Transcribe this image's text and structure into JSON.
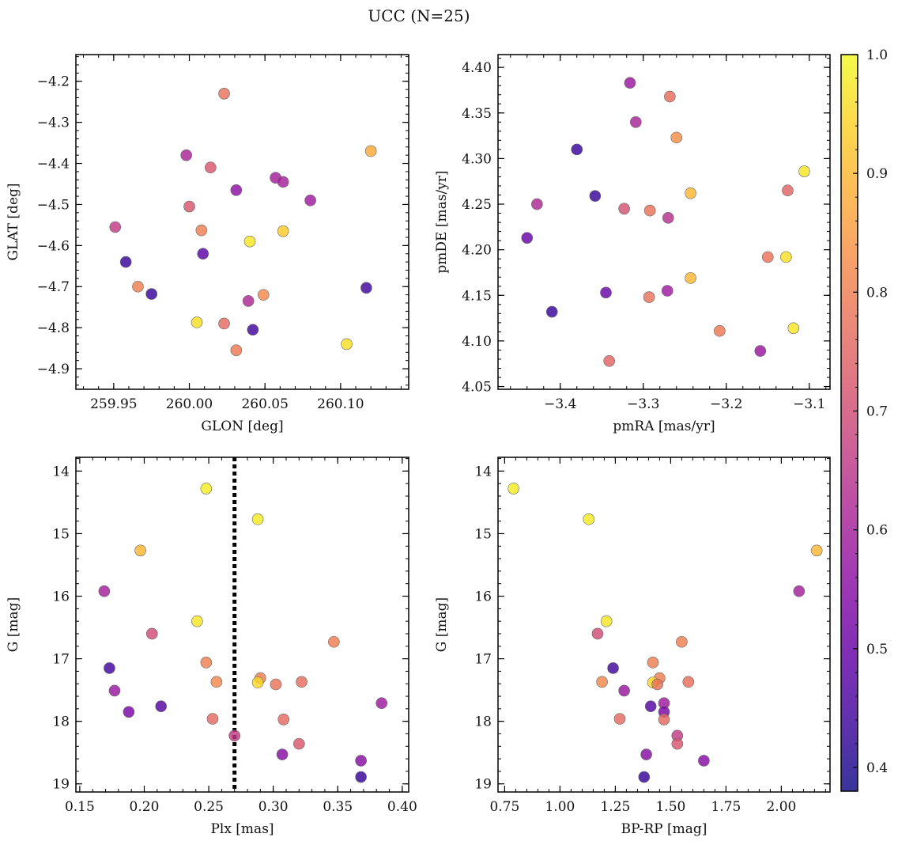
{
  "figure": {
    "title": "UCC (N=25)"
  },
  "chart_data": [
    {
      "type": "scatter",
      "id": "glon-glat",
      "xlabel": "GLON [deg]",
      "ylabel": "GLAT [deg]",
      "xlim": [
        259.925,
        260.145
      ],
      "ylim": [
        -4.95,
        -4.135
      ],
      "y_inverted": false,
      "xticks": [
        259.95,
        260.0,
        260.05,
        260.1
      ],
      "xticklabels": [
        "259.95",
        "260.00",
        "260.05",
        "260.10"
      ],
      "yticks": [
        -4.2,
        -4.3,
        -4.4,
        -4.5,
        -4.6,
        -4.7,
        -4.8,
        -4.9
      ],
      "yticklabels": [
        "−4.2",
        "−4.3",
        "−4.4",
        "−4.5",
        "−4.6",
        "−4.7",
        "−4.8",
        "−4.9"
      ],
      "points": [
        {
          "x": 260.023,
          "y": -4.23,
          "c": 0.78
        },
        {
          "x": 260.12,
          "y": -4.37,
          "c": 0.88
        },
        {
          "x": 259.998,
          "y": -4.38,
          "c": 0.61
        },
        {
          "x": 260.014,
          "y": -4.41,
          "c": 0.72
        },
        {
          "x": 260.057,
          "y": -4.435,
          "c": 0.6
        },
        {
          "x": 260.062,
          "y": -4.445,
          "c": 0.6
        },
        {
          "x": 260.031,
          "y": -4.465,
          "c": 0.56
        },
        {
          "x": 260.08,
          "y": -4.49,
          "c": 0.59
        },
        {
          "x": 260.0,
          "y": -4.505,
          "c": 0.72
        },
        {
          "x": 259.951,
          "y": -4.555,
          "c": 0.66
        },
        {
          "x": 260.008,
          "y": -4.563,
          "c": 0.8
        },
        {
          "x": 260.062,
          "y": -4.565,
          "c": 0.93
        },
        {
          "x": 260.04,
          "y": -4.59,
          "c": 0.97
        },
        {
          "x": 260.009,
          "y": -4.62,
          "c": 0.48
        },
        {
          "x": 259.958,
          "y": -4.64,
          "c": 0.43
        },
        {
          "x": 259.966,
          "y": -4.7,
          "c": 0.8
        },
        {
          "x": 260.117,
          "y": -4.703,
          "c": 0.44
        },
        {
          "x": 259.975,
          "y": -4.718,
          "c": 0.43
        },
        {
          "x": 260.049,
          "y": -4.72,
          "c": 0.82
        },
        {
          "x": 260.039,
          "y": -4.735,
          "c": 0.62
        },
        {
          "x": 260.005,
          "y": -4.787,
          "c": 0.96
        },
        {
          "x": 260.023,
          "y": -4.79,
          "c": 0.76
        },
        {
          "x": 260.042,
          "y": -4.805,
          "c": 0.44
        },
        {
          "x": 260.104,
          "y": -4.84,
          "c": 0.96
        },
        {
          "x": 260.031,
          "y": -4.855,
          "c": 0.79
        }
      ]
    },
    {
      "type": "scatter",
      "id": "pmra-pmde",
      "xlabel": "pmRA [mas/yr]",
      "ylabel": "pmDE [mas/yr]",
      "xlim": [
        -3.475,
        -3.075
      ],
      "ylim": [
        4.047,
        4.414
      ],
      "y_inverted": false,
      "xticks": [
        -3.4,
        -3.3,
        -3.2,
        -3.1
      ],
      "xticklabels": [
        "−3.4",
        "−3.3",
        "−3.2",
        "−3.1"
      ],
      "yticks": [
        4.05,
        4.1,
        4.15,
        4.2,
        4.25,
        4.3,
        4.35,
        4.4
      ],
      "yticklabels": [
        "4.05",
        "4.10",
        "4.15",
        "4.20",
        "4.25",
        "4.30",
        "4.35",
        "4.40"
      ],
      "points": [
        {
          "x": -3.316,
          "y": 4.383,
          "c": 0.58
        },
        {
          "x": -3.268,
          "y": 4.368,
          "c": 0.77
        },
        {
          "x": -3.309,
          "y": 4.34,
          "c": 0.61
        },
        {
          "x": -3.26,
          "y": 4.323,
          "c": 0.83
        },
        {
          "x": -3.38,
          "y": 4.31,
          "c": 0.43
        },
        {
          "x": -3.106,
          "y": 4.286,
          "c": 0.97
        },
        {
          "x": -3.126,
          "y": 4.265,
          "c": 0.75
        },
        {
          "x": -3.243,
          "y": 4.262,
          "c": 0.9
        },
        {
          "x": -3.358,
          "y": 4.259,
          "c": 0.43
        },
        {
          "x": -3.428,
          "y": 4.25,
          "c": 0.62
        },
        {
          "x": -3.323,
          "y": 4.245,
          "c": 0.71
        },
        {
          "x": -3.292,
          "y": 4.243,
          "c": 0.78
        },
        {
          "x": -3.27,
          "y": 4.235,
          "c": 0.64
        },
        {
          "x": -3.44,
          "y": 4.213,
          "c": 0.5
        },
        {
          "x": -3.15,
          "y": 4.192,
          "c": 0.78
        },
        {
          "x": -3.128,
          "y": 4.192,
          "c": 0.96
        },
        {
          "x": -3.243,
          "y": 4.169,
          "c": 0.9
        },
        {
          "x": -3.271,
          "y": 4.155,
          "c": 0.59
        },
        {
          "x": -3.345,
          "y": 4.153,
          "c": 0.5
        },
        {
          "x": -3.293,
          "y": 4.148,
          "c": 0.78
        },
        {
          "x": -3.41,
          "y": 4.132,
          "c": 0.43
        },
        {
          "x": -3.119,
          "y": 4.114,
          "c": 0.97
        },
        {
          "x": -3.208,
          "y": 4.111,
          "c": 0.79
        },
        {
          "x": -3.159,
          "y": 4.089,
          "c": 0.58
        },
        {
          "x": -3.341,
          "y": 4.078,
          "c": 0.75
        }
      ]
    },
    {
      "type": "scatter",
      "id": "plx-g",
      "xlabel": "Plx [mas]",
      "ylabel": "G [mag]",
      "xlim": [
        0.147,
        0.405
      ],
      "ylim": [
        19.13,
        13.78
      ],
      "y_inverted": true,
      "vline": {
        "x": 0.27,
        "style": "dotted"
      },
      "xticks": [
        0.15,
        0.2,
        0.25,
        0.3,
        0.35,
        0.4
      ],
      "xticklabels": [
        "0.15",
        "0.20",
        "0.25",
        "0.30",
        "0.35",
        "0.40"
      ],
      "yticks": [
        14,
        15,
        16,
        17,
        18,
        19
      ],
      "yticklabels": [
        "14",
        "15",
        "16",
        "17",
        "18",
        "19"
      ],
      "points": [
        {
          "x": 0.248,
          "y": 14.28,
          "c": 0.98
        },
        {
          "x": 0.288,
          "y": 14.77,
          "c": 0.98
        },
        {
          "x": 0.197,
          "y": 15.27,
          "c": 0.9
        },
        {
          "x": 0.169,
          "y": 15.92,
          "c": 0.6
        },
        {
          "x": 0.241,
          "y": 16.4,
          "c": 0.97
        },
        {
          "x": 0.206,
          "y": 16.6,
          "c": 0.7
        },
        {
          "x": 0.347,
          "y": 16.73,
          "c": 0.8
        },
        {
          "x": 0.248,
          "y": 17.06,
          "c": 0.8
        },
        {
          "x": 0.173,
          "y": 17.15,
          "c": 0.44
        },
        {
          "x": 0.29,
          "y": 17.31,
          "c": 0.8
        },
        {
          "x": 0.256,
          "y": 17.37,
          "c": 0.82
        },
        {
          "x": 0.288,
          "y": 17.38,
          "c": 0.95
        },
        {
          "x": 0.322,
          "y": 17.37,
          "c": 0.77
        },
        {
          "x": 0.302,
          "y": 17.41,
          "c": 0.78
        },
        {
          "x": 0.177,
          "y": 17.51,
          "c": 0.58
        },
        {
          "x": 0.384,
          "y": 17.71,
          "c": 0.59
        },
        {
          "x": 0.213,
          "y": 17.76,
          "c": 0.47
        },
        {
          "x": 0.188,
          "y": 17.85,
          "c": 0.53
        },
        {
          "x": 0.253,
          "y": 17.96,
          "c": 0.76
        },
        {
          "x": 0.308,
          "y": 17.97,
          "c": 0.76
        },
        {
          "x": 0.27,
          "y": 18.23,
          "c": 0.66
        },
        {
          "x": 0.32,
          "y": 18.36,
          "c": 0.72
        },
        {
          "x": 0.307,
          "y": 18.53,
          "c": 0.55
        },
        {
          "x": 0.368,
          "y": 18.63,
          "c": 0.55
        },
        {
          "x": 0.368,
          "y": 18.89,
          "c": 0.43
        }
      ]
    },
    {
      "type": "scatter",
      "id": "bprp-g",
      "xlabel": "BP-RP [mag]",
      "ylabel": "G [mag]",
      "xlim": [
        0.72,
        2.22
      ],
      "ylim": [
        19.13,
        13.78
      ],
      "y_inverted": true,
      "xticks": [
        0.75,
        1.0,
        1.25,
        1.5,
        1.75,
        2.0
      ],
      "xticklabels": [
        "0.75",
        "1.00",
        "1.25",
        "1.50",
        "1.75",
        "2.00"
      ],
      "yticks": [
        14,
        15,
        16,
        17,
        18,
        19
      ],
      "yticklabels": [
        "14",
        "15",
        "16",
        "17",
        "18",
        "19"
      ],
      "points": [
        {
          "x": 0.79,
          "y": 14.28,
          "c": 0.98
        },
        {
          "x": 1.13,
          "y": 14.77,
          "c": 0.98
        },
        {
          "x": 2.16,
          "y": 15.27,
          "c": 0.9
        },
        {
          "x": 2.08,
          "y": 15.92,
          "c": 0.6
        },
        {
          "x": 1.21,
          "y": 16.4,
          "c": 0.97
        },
        {
          "x": 1.17,
          "y": 16.6,
          "c": 0.7
        },
        {
          "x": 1.55,
          "y": 16.73,
          "c": 0.8
        },
        {
          "x": 1.42,
          "y": 17.06,
          "c": 0.8
        },
        {
          "x": 1.24,
          "y": 17.15,
          "c": 0.44
        },
        {
          "x": 1.45,
          "y": 17.31,
          "c": 0.8
        },
        {
          "x": 1.19,
          "y": 17.37,
          "c": 0.82
        },
        {
          "x": 1.42,
          "y": 17.38,
          "c": 0.95
        },
        {
          "x": 1.58,
          "y": 17.37,
          "c": 0.77
        },
        {
          "x": 1.44,
          "y": 17.41,
          "c": 0.78
        },
        {
          "x": 1.29,
          "y": 17.51,
          "c": 0.58
        },
        {
          "x": 1.47,
          "y": 17.71,
          "c": 0.59
        },
        {
          "x": 1.41,
          "y": 17.76,
          "c": 0.47
        },
        {
          "x": 1.47,
          "y": 17.85,
          "c": 0.53
        },
        {
          "x": 1.27,
          "y": 17.96,
          "c": 0.76
        },
        {
          "x": 1.47,
          "y": 17.97,
          "c": 0.76
        },
        {
          "x": 1.53,
          "y": 18.23,
          "c": 0.66
        },
        {
          "x": 1.53,
          "y": 18.36,
          "c": 0.72
        },
        {
          "x": 1.39,
          "y": 18.53,
          "c": 0.55
        },
        {
          "x": 1.65,
          "y": 18.63,
          "c": 0.55
        },
        {
          "x": 1.38,
          "y": 18.89,
          "c": 0.43
        }
      ]
    }
  ],
  "colorbar": {
    "cmap": "plasma",
    "range": [
      0.38,
      1.0
    ],
    "ticks": [
      0.4,
      0.5,
      0.6,
      0.7,
      0.8,
      0.9,
      1.0
    ],
    "ticklabels": [
      "0.4",
      "0.5",
      "0.6",
      "0.7",
      "0.8",
      "0.9",
      "1.0"
    ]
  },
  "plasma_stops": [
    "#0d0887",
    "#46039f",
    "#7201a8",
    "#9c179e",
    "#bd3786",
    "#d8576b",
    "#ed7953",
    "#fb9f3a",
    "#fdca26",
    "#f0f921"
  ]
}
